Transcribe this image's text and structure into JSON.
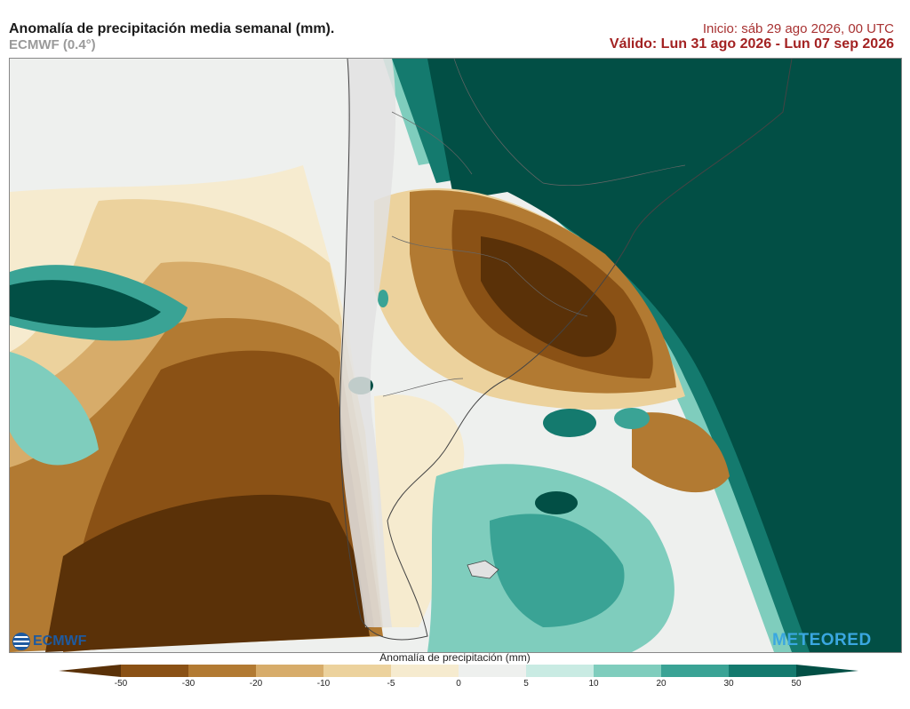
{
  "header": {
    "title": "Anomalía de precipitación media semanal (mm).",
    "model": "ECMWF (0.4°)",
    "init": "Inicio:  sáb 29 ago 2026, 00 UTC",
    "valid": "Válido: Lun 31 ago 2026 - Lun 07 sep 2026"
  },
  "logos": {
    "left": "ECMWF",
    "right": "METEORED"
  },
  "legend": {
    "title": "Anomalía de precipitación (mm)",
    "ticks": [
      "-50",
      "-30",
      "-20",
      "-10",
      "-5",
      "0",
      "5",
      "10",
      "20",
      "30",
      "50"
    ],
    "colors": [
      "#5a3108",
      "#8a5115",
      "#b27a32",
      "#d7ac6a",
      "#ecd29d",
      "#f6ebcf",
      "#eef0ee",
      "#c9ebe3",
      "#7fcdbd",
      "#3aa395",
      "#147a6e",
      "#024f45"
    ]
  },
  "map": {
    "background": "#eef0ee",
    "colors": {
      "dry1": "#f6ebcf",
      "dry2": "#ecd29d",
      "dry3": "#d7ac6a",
      "dry4": "#b27a32",
      "dry5": "#8a5115",
      "dry6": "#5a3108",
      "wet1": "#c9ebe3",
      "wet2": "#7fcdbd",
      "wet3": "#3aa395",
      "wet4": "#147a6e",
      "wet5": "#024f45",
      "land": "#e2e2e2",
      "border": "#555555"
    }
  }
}
